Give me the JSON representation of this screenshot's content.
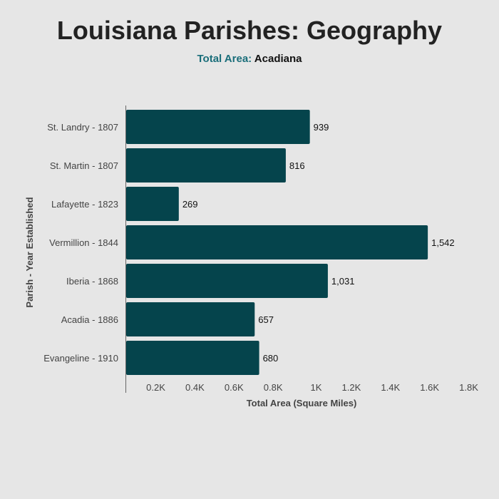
{
  "title": "Louisiana Parishes: Geography",
  "subtitle": {
    "label": "Total Area:",
    "value": "Acadiana"
  },
  "colors": {
    "bar": "#05444c",
    "subtitle_label": "#1a6e7a",
    "background": "#e6e6e6"
  },
  "chart_data": {
    "type": "bar",
    "orientation": "horizontal",
    "categories": [
      "St. Landry - 1807",
      "St. Martin - 1807",
      "Lafayette - 1823",
      "Vermillion - 1844",
      "Iberia - 1868",
      "Acadia - 1886",
      "Evangeline - 1910"
    ],
    "values": [
      939,
      816,
      269,
      1542,
      1031,
      657,
      680
    ],
    "value_labels": [
      "939",
      "816",
      "269",
      "1,542",
      "1,031",
      "657",
      "680"
    ],
    "xlabel": "Total Area (Square Miles)",
    "ylabel": "Parish - Year Established",
    "xlim": [
      0,
      1800
    ],
    "xticks": [
      200,
      400,
      600,
      800,
      1000,
      1200,
      1400,
      1600,
      1800
    ],
    "xtick_labels": [
      "0.2K",
      "0.4K",
      "0.6K",
      "0.8K",
      "1K",
      "1.2K",
      "1.4K",
      "1.6K",
      "1.8K"
    ],
    "grid": false,
    "legend": "none"
  }
}
